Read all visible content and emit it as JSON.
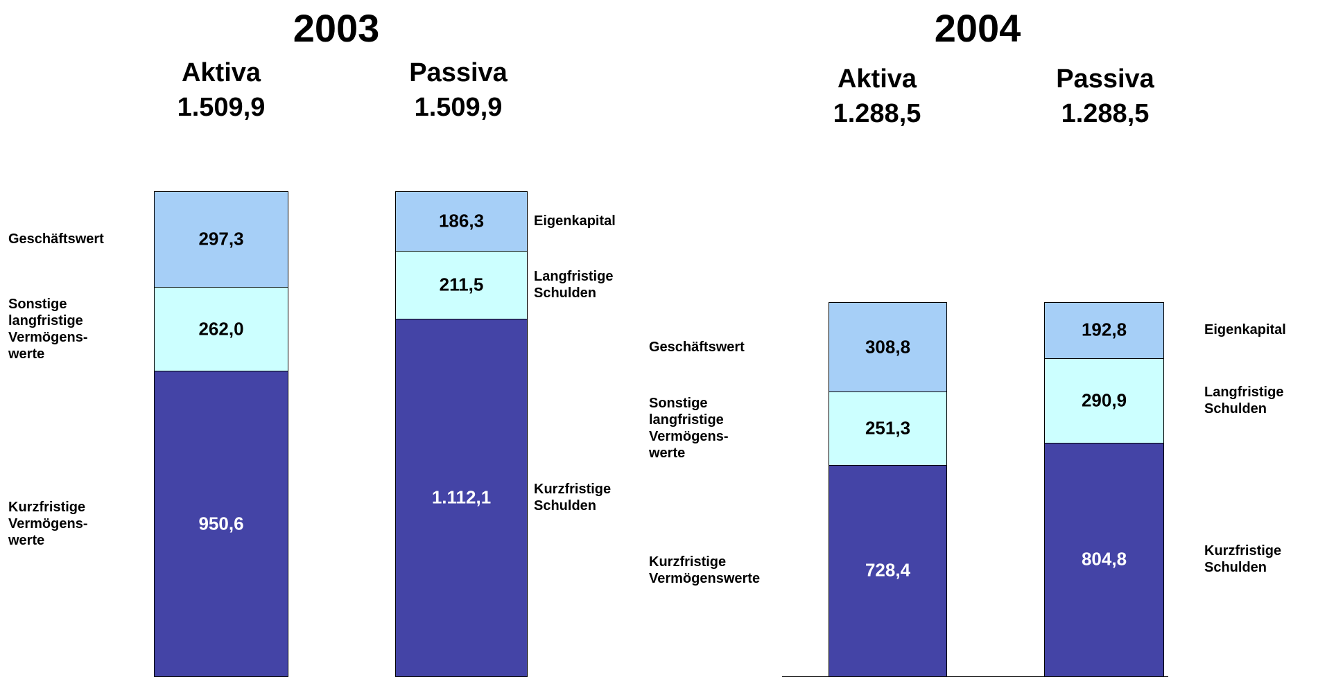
{
  "chart_data": [
    {
      "type": "bar",
      "stacked": true,
      "title": "2003",
      "bars": [
        {
          "name": "Aktiva",
          "total": 1509.9,
          "total_label": "1.509,9",
          "segments": [
            {
              "name": "Geschäftswert",
              "color": "#a6cff7",
              "value": 297.3,
              "value_label": "297,3"
            },
            {
              "name": "Sonstige\nlangfristige\nVermögens-\nwerte",
              "color": "#ccffff",
              "value": 262.0,
              "value_label": "262,0"
            },
            {
              "name": "Kurzfristige\nVermögens-\nwerte",
              "color": "#4444a6",
              "value": 950.6,
              "value_label": "950,6"
            }
          ]
        },
        {
          "name": "Passiva",
          "total": 1509.9,
          "total_label": "1.509,9",
          "segments": [
            {
              "name": "Eigenkapital",
              "color": "#a6cff7",
              "value": 186.3,
              "value_label": "186,3"
            },
            {
              "name": "Langfristige\nSchulden",
              "color": "#ccffff",
              "value": 211.5,
              "value_label": "211,5"
            },
            {
              "name": "Kurzfristige\nSchulden",
              "color": "#4444a6",
              "value": 1112.1,
              "value_label": "1.112,1"
            }
          ]
        }
      ]
    },
    {
      "type": "bar",
      "stacked": true,
      "title": "2004",
      "bars": [
        {
          "name": "Aktiva",
          "total": 1288.5,
          "total_label": "1.288,5",
          "segments": [
            {
              "name": "Geschäftswert",
              "color": "#a6cff7",
              "value": 308.8,
              "value_label": "308,8"
            },
            {
              "name": "Sonstige\nlangfristige\nVermögens-\nwerte",
              "color": "#ccffff",
              "value": 251.3,
              "value_label": "251,3"
            },
            {
              "name": "Kurzfristige\nVermögenswerte",
              "color": "#4444a6",
              "value": 728.4,
              "value_label": "728,4"
            }
          ]
        },
        {
          "name": "Passiva",
          "total": 1288.5,
          "total_label": "1.288,5",
          "segments": [
            {
              "name": "Eigenkapital",
              "color": "#a6cff7",
              "value": 192.8,
              "value_label": "192,8"
            },
            {
              "name": "Langfristige\nSchulden",
              "color": "#ccffff",
              "value": 290.9,
              "value_label": "290,9"
            },
            {
              "name": "Kurzfristige\nSchulden",
              "color": "#4444a6",
              "value": 804.8,
              "value_label": "804,8"
            }
          ]
        }
      ]
    }
  ]
}
